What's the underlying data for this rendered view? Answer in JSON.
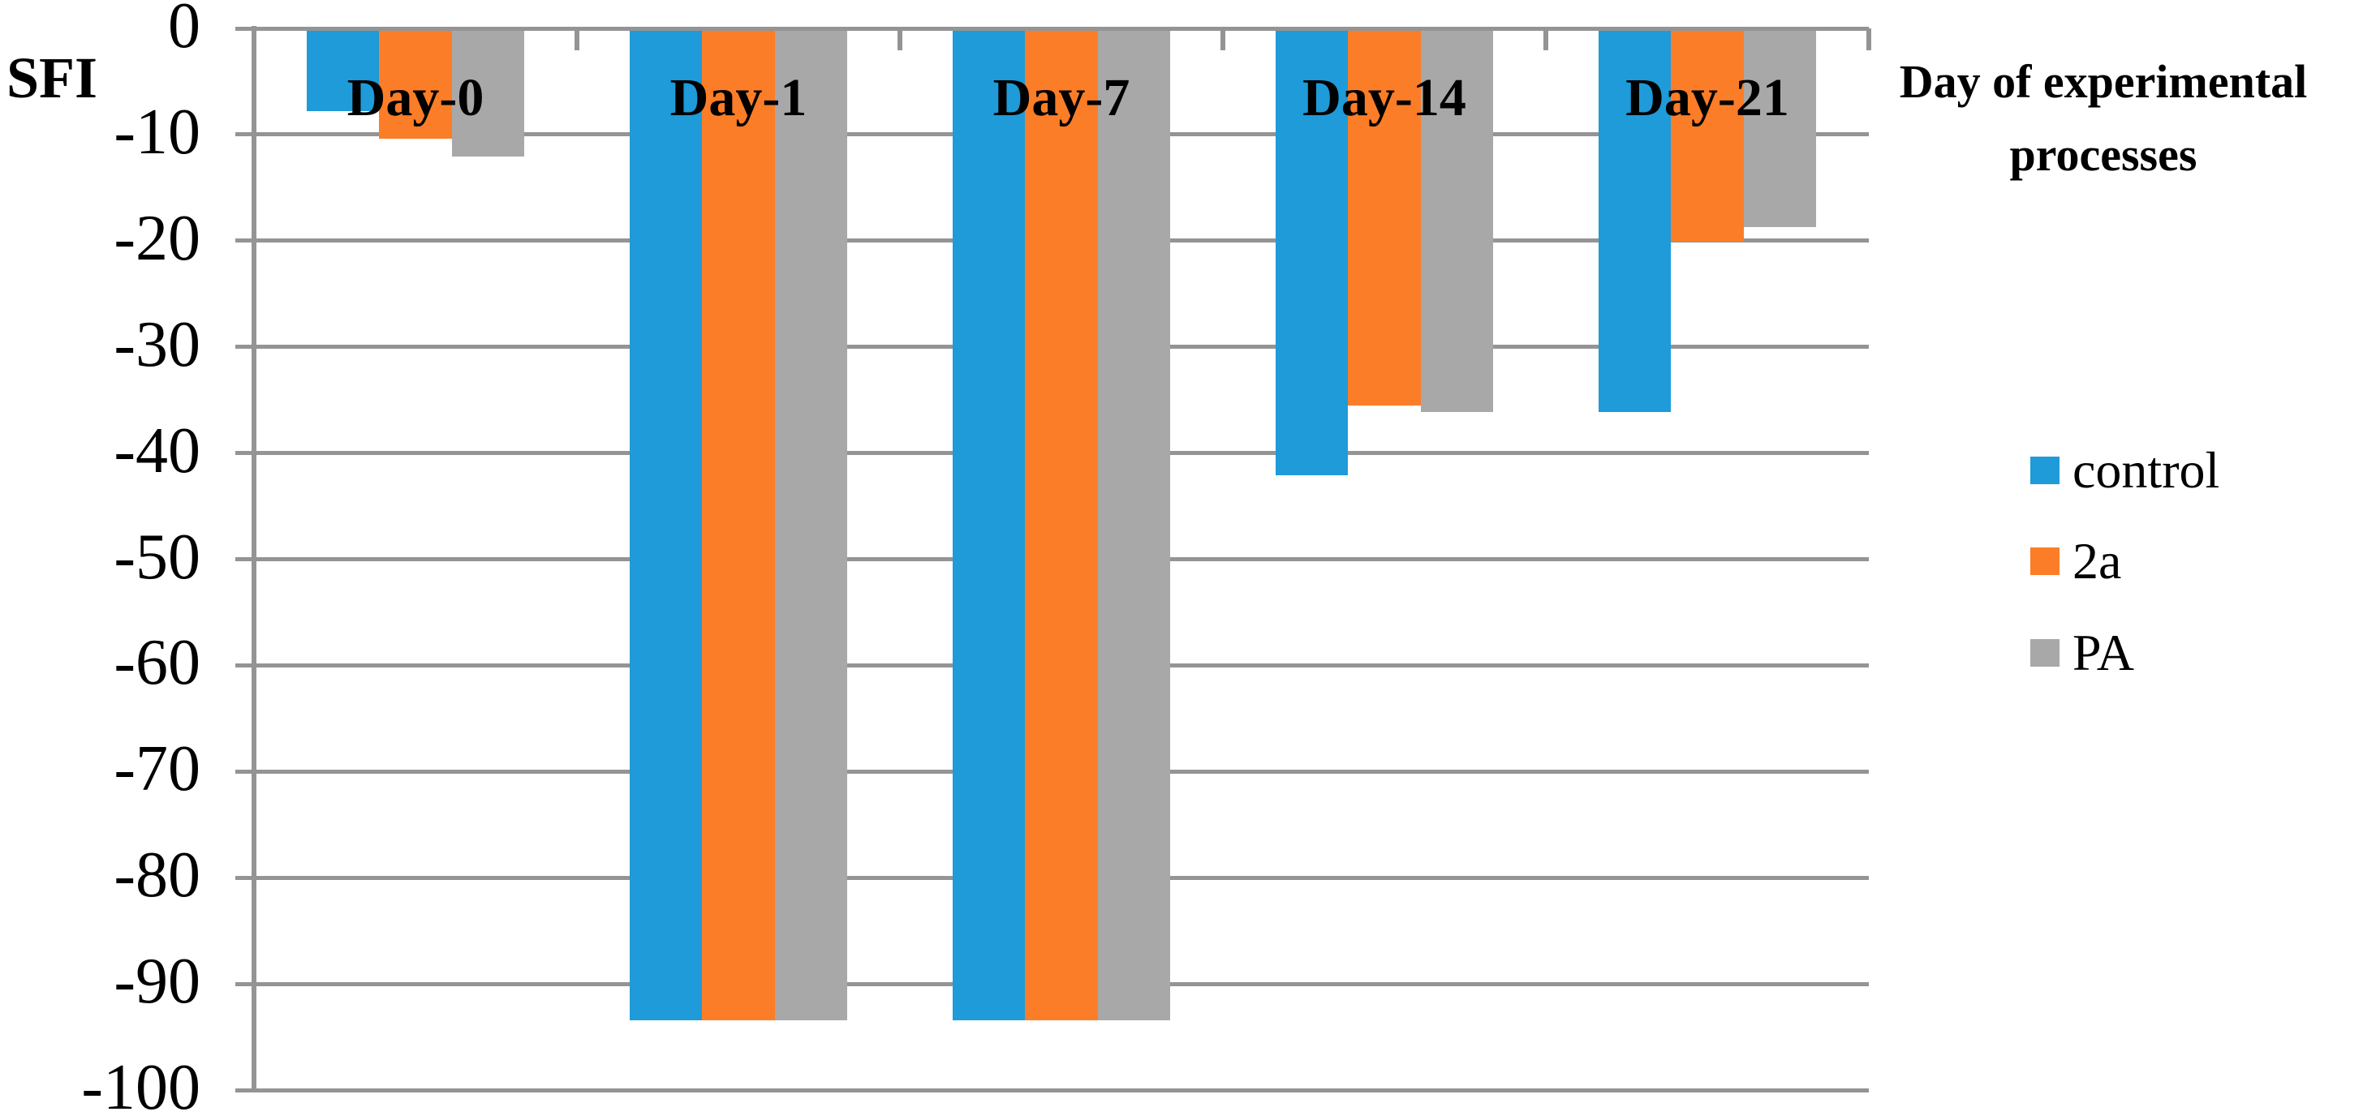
{
  "chart_data": {
    "type": "bar",
    "orientation": "vertical-negative",
    "y_axis_label": "SFI",
    "x_axis_label_line1": "Day of experimental",
    "x_axis_label_line2": "processes",
    "categories": [
      "Day-0",
      "Day-1",
      "Day-7",
      "Day-14",
      "Day-21"
    ],
    "series": [
      {
        "name": "control",
        "color": "#1E9BD8",
        "values": [
          -7.8,
          -93.4,
          -93.4,
          -42.1,
          -36.1
        ]
      },
      {
        "name": "2a",
        "color": "#FC7D27",
        "values": [
          -10.4,
          -93.4,
          -93.4,
          -35.5,
          -20.1
        ]
      },
      {
        "name": "PA",
        "color": "#A8A8A8",
        "values": [
          -12.1,
          -93.4,
          -93.4,
          -36.1,
          -18.7
        ]
      }
    ],
    "ylim": [
      -100,
      0
    ],
    "ytick_labels": [
      "0",
      "-10",
      "-20",
      "-30",
      "-40",
      "-50",
      "-60",
      "-70",
      "-80",
      "-90",
      "-100"
    ],
    "grid": "horizontal",
    "legend_position": "right"
  },
  "style_colors": {
    "axis_and_grid": "#949494",
    "text": "#000000",
    "background": "#FFFFFF"
  }
}
